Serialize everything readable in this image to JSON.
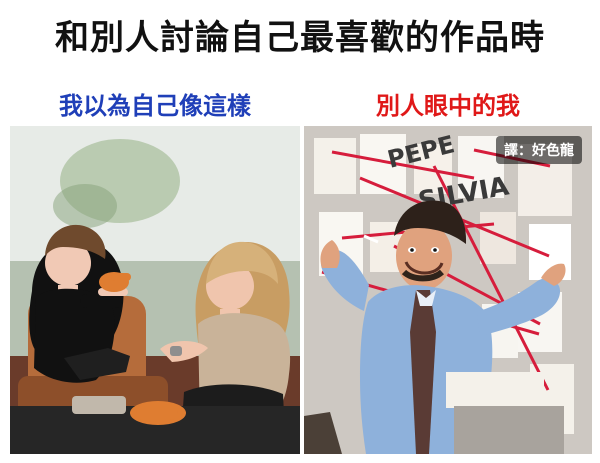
{
  "title": "和別人討論自己最喜歡的作品時",
  "left_panel": {
    "caption": "我以為自己像這樣"
  },
  "right_panel": {
    "caption": "別人眼中的我",
    "credit": "譯：好色龍",
    "wall_text_1": "PEPE",
    "wall_text_2": "SILVIA"
  },
  "colors": {
    "left_caption": "#1f3fb8",
    "right_caption": "#e01818",
    "title": "#111111"
  }
}
